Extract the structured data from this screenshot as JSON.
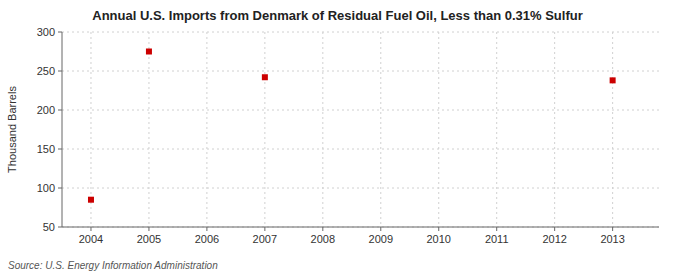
{
  "chart_data": {
    "type": "scatter",
    "title": "Annual U.S. Imports from Denmark of Residual Fuel Oil, Less than 0.31% Sulfur",
    "y_label": "Thousand Barrels",
    "source": "Source: U.S. Energy Information Administration",
    "x": [
      2004,
      2005,
      2007,
      2013
    ],
    "values": [
      85,
      275,
      242,
      238
    ],
    "color": "#cc0000",
    "marker": "square",
    "xlim": [
      2003.5,
      2013.8
    ],
    "ylim": [
      50,
      300
    ],
    "xticks": [
      2004,
      2005,
      2006,
      2007,
      2008,
      2009,
      2010,
      2011,
      2012,
      2013
    ],
    "yticks": [
      50,
      100,
      150,
      200,
      250,
      300
    ],
    "grid": true
  }
}
